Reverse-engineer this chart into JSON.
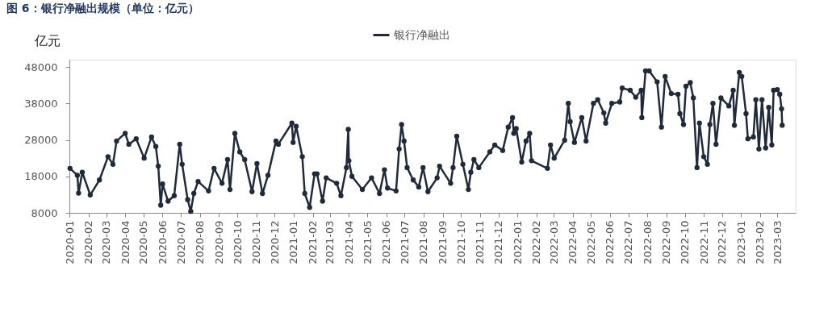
{
  "chart_data": {
    "type": "line",
    "title": "图 6：银行净融出规模（单位：亿元）",
    "ylabel": "亿元",
    "legend": "top",
    "marker": "circle",
    "line_style": "solid",
    "grid": false,
    "ylim": [
      8000,
      50000
    ],
    "yticks": [
      8000,
      18000,
      28000,
      38000,
      48000
    ],
    "xlim": [
      "2020-01-01",
      "2023-03-31"
    ],
    "xticks": [
      "2020-01",
      "2020-02",
      "2020-03",
      "2020-04",
      "2020-05",
      "2020-06",
      "2020-07",
      "2020-08",
      "2020-09",
      "2020-10",
      "2020-11",
      "2020-12",
      "2021-01",
      "2021-02",
      "2021-03",
      "2021-04",
      "2021-05",
      "2021-06",
      "2021-07",
      "2021-08",
      "2021-09",
      "2021-10",
      "2021-11",
      "2021-12",
      "2022-01",
      "2022-02",
      "2022-03",
      "2022-04",
      "2022-05",
      "2022-06",
      "2022-07",
      "2022-08",
      "2022-09",
      "2022-10",
      "2022-11",
      "2022-12",
      "2023-01",
      "2023-02",
      "2023-03"
    ],
    "x": [
      "2020-01-02",
      "2020-01-14",
      "2020-01-16",
      "2020-01-22",
      "2020-02-04",
      "2020-02-19",
      "2020-03-04",
      "2020-03-12",
      "2020-03-18",
      "2020-04-01",
      "2020-04-07",
      "2020-04-19",
      "2020-05-02",
      "2020-05-14",
      "2020-05-21",
      "2020-05-25",
      "2020-05-29",
      "2020-06-01",
      "2020-06-10",
      "2020-06-20",
      "2020-06-29",
      "2020-07-03",
      "2020-07-12",
      "2020-07-17",
      "2020-07-22",
      "2020-07-29",
      "2020-08-15",
      "2020-08-24",
      "2020-09-06",
      "2020-09-15",
      "2020-09-19",
      "2020-09-27",
      "2020-10-05",
      "2020-10-13",
      "2020-10-25",
      "2020-11-02",
      "2020-11-11",
      "2020-11-20",
      "2020-12-03",
      "2020-12-07",
      "2020-12-29",
      "2020-12-31",
      "2021-01-05",
      "2021-01-15",
      "2021-01-19",
      "2021-01-27",
      "2021-02-04",
      "2021-02-08",
      "2021-02-17",
      "2021-02-23",
      "2021-03-12",
      "2021-03-19",
      "2021-03-28",
      "2021-03-31",
      "2021-04-01",
      "2021-04-06",
      "2021-04-23",
      "2021-05-08",
      "2021-05-21",
      "2021-05-29",
      "2021-06-03",
      "2021-06-17",
      "2021-06-22",
      "2021-06-26",
      "2021-06-30",
      "2021-07-05",
      "2021-07-15",
      "2021-07-24",
      "2021-07-31",
      "2021-08-08",
      "2021-08-23",
      "2021-08-27",
      "2021-09-14",
      "2021-09-18",
      "2021-09-24",
      "2021-10-04",
      "2021-10-13",
      "2021-10-17",
      "2021-10-22",
      "2021-10-30",
      "2021-11-17",
      "2021-11-25",
      "2021-12-08",
      "2021-12-17",
      "2021-12-24",
      "2021-12-26",
      "2021-12-30",
      "2022-01-08",
      "2022-01-15",
      "2022-01-21",
      "2022-01-24",
      "2022-02-19",
      "2022-02-24",
      "2022-03-02",
      "2022-03-19",
      "2022-03-25",
      "2022-03-28",
      "2022-04-04",
      "2022-04-16",
      "2022-04-23",
      "2022-05-05",
      "2022-05-12",
      "2022-05-22",
      "2022-05-25",
      "2022-06-04",
      "2022-06-17",
      "2022-06-21",
      "2022-07-04",
      "2022-07-13",
      "2022-07-22",
      "2022-07-23",
      "2022-07-29",
      "2022-08-04",
      "2022-08-17",
      "2022-08-24",
      "2022-08-30",
      "2022-09-09",
      "2022-09-20",
      "2022-09-23",
      "2022-09-29",
      "2022-10-03",
      "2022-10-10",
      "2022-10-15",
      "2022-10-21",
      "2022-10-25",
      "2022-11-01",
      "2022-11-07",
      "2022-11-11",
      "2022-11-16",
      "2022-11-21",
      "2022-11-29",
      "2022-12-12",
      "2022-12-19",
      "2022-12-21",
      "2022-12-29",
      "2023-01-02",
      "2023-01-09",
      "2023-01-12",
      "2023-01-21",
      "2023-01-25",
      "2023-01-30",
      "2023-02-04",
      "2023-02-10",
      "2023-02-15",
      "2023-02-20",
      "2023-02-23",
      "2023-03-01",
      "2023-03-05",
      "2023-03-08",
      "2023-03-09"
    ],
    "series": [
      {
        "name": "银行净融出",
        "color": "#1f2a3a",
        "values": [
          20200,
          18300,
          13400,
          19100,
          12900,
          17000,
          23400,
          21300,
          27700,
          29800,
          26800,
          28300,
          23000,
          28800,
          26200,
          20800,
          10100,
          15900,
          11200,
          12700,
          26800,
          21300,
          11600,
          8400,
          13300,
          16600,
          14000,
          20200,
          16100,
          22600,
          14400,
          29800,
          24700,
          22600,
          13800,
          21500,
          13300,
          18300,
          27700,
          26800,
          32600,
          27300,
          31700,
          23400,
          13300,
          9500,
          18700,
          18700,
          11200,
          17600,
          16100,
          12700,
          20400,
          30900,
          22300,
          18000,
          14400,
          17600,
          13300,
          19800,
          14800,
          14000,
          25500,
          32200,
          27700,
          20400,
          17000,
          15100,
          20400,
          13800,
          17600,
          20800,
          16100,
          20400,
          29000,
          21300,
          14400,
          19100,
          22600,
          20400,
          24700,
          26600,
          25100,
          31500,
          34100,
          29800,
          31100,
          21900,
          27700,
          29800,
          22300,
          20200,
          26600,
          23000,
          27900,
          38000,
          33000,
          27300,
          34100,
          27700,
          38000,
          39000,
          35400,
          32600,
          38000,
          38400,
          42200,
          41600,
          39700,
          41600,
          34100,
          46900,
          46900,
          43900,
          31500,
          45400,
          40700,
          40500,
          35200,
          32200,
          42700,
          43700,
          39500,
          20400,
          32600,
          23400,
          21300,
          32200,
          38000,
          26800,
          39500,
          37300,
          41600,
          32000,
          46500,
          45400,
          35200,
          28300,
          28800,
          39000,
          25500,
          39000,
          25800,
          36900,
          26600,
          41600,
          41800,
          40500,
          36500,
          32000
        ]
      }
    ]
  }
}
